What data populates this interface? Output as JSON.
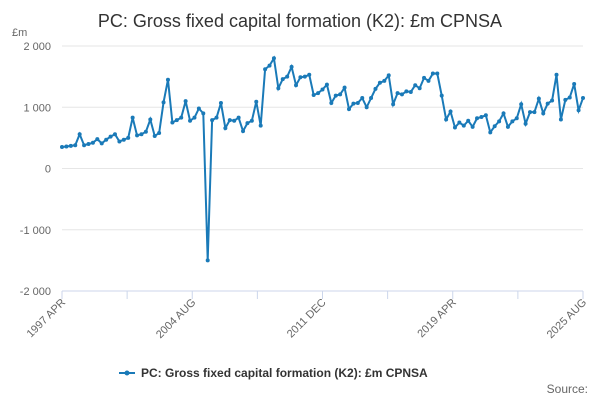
{
  "chart_data": {
    "type": "line",
    "title": "PC: Gross fixed capital formation (K2): £m CPNSA",
    "unit_label": "£m",
    "source_label": "Source:",
    "x_tick_labels": [
      "1997 APR",
      "2004 AUG",
      "2011 DEC",
      "2019 APR",
      "2025 AUG"
    ],
    "y_ticks": [
      -2000,
      -1000,
      0,
      1000,
      2000
    ],
    "y_tick_labels": [
      "-2 000",
      "-1 000",
      "0",
      "1 000",
      "2 000"
    ],
    "ylim": [
      -2000,
      2000
    ],
    "grid": true,
    "legend_position": "bottom",
    "colors": {
      "series": "#1a7ab8",
      "grid": "#e6e6e6",
      "axis": "#ccd6eb"
    },
    "x_start": "1997 APR",
    "x_end": "2025 AUG",
    "series": [
      {
        "name": "PC: Gross fixed capital formation (K2): £m CPNSA",
        "values": [
          350,
          360,
          370,
          380,
          560,
          380,
          400,
          420,
          480,
          410,
          470,
          520,
          560,
          440,
          470,
          500,
          830,
          540,
          560,
          600,
          800,
          530,
          580,
          1080,
          1450,
          750,
          790,
          830,
          1100,
          780,
          830,
          980,
          900,
          -1500,
          790,
          830,
          1070,
          660,
          790,
          780,
          830,
          610,
          740,
          780,
          1090,
          700,
          1620,
          1680,
          1800,
          1310,
          1460,
          1500,
          1660,
          1360,
          1490,
          1500,
          1530,
          1200,
          1230,
          1290,
          1370,
          1070,
          1190,
          1210,
          1320,
          970,
          1060,
          1070,
          1150,
          1000,
          1150,
          1300,
          1400,
          1430,
          1520,
          1050,
          1230,
          1210,
          1260,
          1250,
          1360,
          1310,
          1480,
          1430,
          1550,
          1550,
          1190,
          800,
          930,
          670,
          750,
          700,
          780,
          680,
          820,
          840,
          870,
          590,
          690,
          770,
          900,
          680,
          770,
          820,
          1050,
          730,
          920,
          920,
          1140,
          900,
          1060,
          1110,
          1530,
          800,
          1120,
          1160,
          1380,
          950,
          1150
        ]
      }
    ]
  }
}
